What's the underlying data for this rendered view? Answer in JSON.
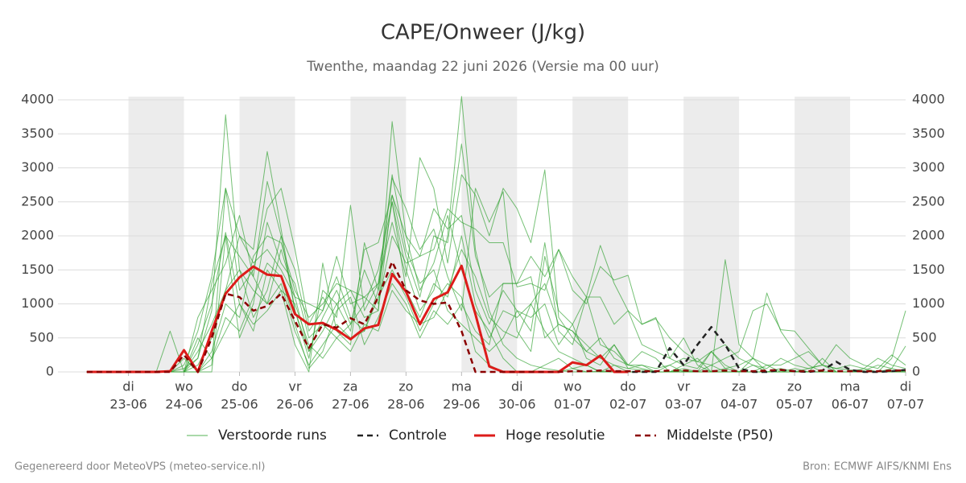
{
  "chart_data": {
    "type": "line",
    "title": "CAPE/Onweer (J/kg)",
    "subtitle": "Twenthe, maandag 22 juni 2026 (Versie ma 00 uur)",
    "x": [
      0.25,
      0.5,
      0.75,
      1,
      1.25,
      1.5,
      1.75,
      2,
      2.25,
      2.5,
      2.75,
      3,
      3.25,
      3.5,
      3.75,
      4,
      4.25,
      4.5,
      4.75,
      5,
      5.25,
      5.5,
      5.75,
      6,
      6.25,
      6.5,
      6.75,
      7,
      7.25,
      7.5,
      7.75,
      8,
      8.25,
      8.5,
      8.75,
      9,
      9.25,
      9.5,
      9.75,
      10,
      10.25,
      10.5,
      10.75,
      11,
      11.25,
      11.5,
      11.75,
      12,
      12.25,
      12.5,
      12.75,
      13,
      13.25,
      13.5,
      13.75,
      14,
      14.25,
      14.5,
      14.75,
      15
    ],
    "xlim": [
      -0.27,
      15
    ],
    "xticks": [
      {
        "value": 1,
        "label": "23-06"
      },
      {
        "value": 2,
        "label": "24-06"
      },
      {
        "value": 3,
        "label": "25-06"
      },
      {
        "value": 4,
        "label": "26-06"
      },
      {
        "value": 5,
        "label": "27-06"
      },
      {
        "value": 6,
        "label": "28-06"
      },
      {
        "value": 7,
        "label": "29-06"
      },
      {
        "value": 8,
        "label": "30-06"
      },
      {
        "value": 9,
        "label": "01-07"
      },
      {
        "value": 10,
        "label": "02-07"
      },
      {
        "value": 11,
        "label": "03-07"
      },
      {
        "value": 12,
        "label": "04-07"
      },
      {
        "value": 13,
        "label": "05-07"
      },
      {
        "value": 14,
        "label": "06-07"
      },
      {
        "value": 15,
        "label": "07-07"
      }
    ],
    "xtick_weekdays": [
      "di",
      "wo",
      "do",
      "vr",
      "za",
      "zo",
      "ma",
      "di",
      "wo",
      "do",
      "vr",
      "za",
      "zo",
      "ma",
      "di"
    ],
    "ylim": [
      0,
      4000
    ],
    "yticks": [
      0,
      500,
      1000,
      1500,
      2000,
      2500,
      3000,
      3500,
      4000
    ],
    "grid": true,
    "ensemble": {
      "name": "Verstoorde runs",
      "color": "#2ca02c",
      "members": [
        [
          0,
          0,
          0,
          0,
          0,
          0,
          0,
          50,
          200,
          900,
          3780,
          1500,
          800,
          1200,
          2000,
          1500,
          600,
          900,
          1400,
          800,
          600,
          1200,
          2500,
          1500,
          900,
          1200,
          2000,
          4050,
          1800,
          900,
          400,
          200,
          100,
          50,
          20,
          0,
          0,
          10,
          0,
          0,
          0,
          0,
          0,
          0,
          0,
          0,
          0,
          0,
          0,
          0,
          0,
          0,
          0,
          0,
          0,
          0,
          0,
          0,
          0,
          0
        ],
        [
          0,
          0,
          0,
          0,
          0,
          0,
          0,
          0,
          100,
          500,
          1200,
          2000,
          1800,
          3240,
          2100,
          900,
          300,
          600,
          1000,
          1200,
          800,
          900,
          3680,
          2000,
          1200,
          1600,
          2300,
          1500,
          900,
          600,
          200,
          0,
          0,
          0,
          0,
          50,
          100,
          0,
          0,
          0,
          0,
          0,
          0,
          20,
          0,
          0,
          0,
          0,
          0,
          0,
          0,
          0,
          0,
          0,
          0,
          0,
          0,
          0,
          0,
          0
        ],
        [
          0,
          0,
          0,
          0,
          0,
          0,
          0,
          100,
          600,
          1400,
          2700,
          1200,
          1500,
          2400,
          2700,
          1800,
          700,
          1100,
          800,
          2450,
          900,
          1300,
          2200,
          1400,
          3150,
          2700,
          1600,
          2900,
          2600,
          2000,
          2700,
          2400,
          1900,
          2970,
          800,
          500,
          300,
          200,
          100,
          50,
          30,
          0,
          0,
          0,
          0,
          0,
          0,
          0,
          0,
          0,
          0,
          0,
          0,
          0,
          0,
          0,
          0,
          0,
          0,
          0
        ],
        [
          0,
          0,
          0,
          0,
          0,
          0,
          600,
          0,
          400,
          1000,
          2050,
          1000,
          600,
          1500,
          1200,
          400,
          0,
          1600,
          600,
          400,
          1900,
          1200,
          2850,
          2400,
          1800,
          2100,
          1400,
          900,
          2700,
          2200,
          2650,
          600,
          300,
          1700,
          900,
          700,
          1100,
          1860,
          1300,
          900,
          700,
          800,
          200,
          500,
          100,
          0,
          1650,
          400,
          200,
          1160,
          600,
          300,
          100,
          0,
          0,
          0,
          0,
          0,
          200,
          900
        ],
        [
          0,
          0,
          0,
          0,
          0,
          0,
          0,
          0,
          800,
          1200,
          1600,
          2300,
          1400,
          2800,
          2000,
          900,
          200,
          1200,
          1000,
          600,
          1800,
          1900,
          2600,
          1700,
          1100,
          2000,
          1900,
          3350,
          1700,
          1100,
          1300,
          1300,
          1700,
          1400,
          1800,
          1200,
          1000,
          1550,
          1350,
          1420,
          700,
          780,
          500,
          300,
          150,
          100,
          200,
          300,
          900,
          1000,
          620,
          600,
          350,
          100,
          50,
          30,
          20,
          100,
          50,
          380
        ],
        [
          0,
          0,
          0,
          0,
          0,
          0,
          0,
          200,
          0,
          300,
          1000,
          800,
          1700,
          2000,
          1900,
          1200,
          800,
          1000,
          1300,
          1200,
          1100,
          900,
          2600,
          2000,
          1700,
          1800,
          2400,
          2200,
          2100,
          1900,
          1900,
          1250,
          1300,
          1200,
          1800,
          1400,
          1100,
          1100,
          700,
          900,
          400,
          300,
          200,
          100,
          50,
          300,
          400,
          200,
          100,
          50,
          200,
          100,
          50,
          100,
          400,
          200,
          100,
          50,
          250,
          100
        ],
        [
          0,
          0,
          0,
          0,
          0,
          0,
          0,
          0,
          0,
          200,
          600,
          1000,
          700,
          900,
          1200,
          1000,
          400,
          200,
          500,
          300,
          700,
          600,
          1200,
          900,
          700,
          800,
          1200,
          1800,
          1400,
          800,
          600,
          500,
          1000,
          1300,
          700,
          600,
          400,
          200,
          400,
          100,
          100,
          50,
          100,
          200,
          150,
          300,
          50,
          100,
          200,
          100,
          100,
          200,
          300,
          100,
          50,
          100,
          50,
          200,
          100,
          50
        ],
        [
          0,
          0,
          0,
          0,
          0,
          0,
          0,
          300,
          0,
          100,
          2700,
          2000,
          1600,
          1800,
          1500,
          1100,
          1000,
          900,
          1700,
          1000,
          1100,
          1300,
          2900,
          1800,
          1300,
          1500,
          900,
          700,
          500,
          300,
          500,
          900,
          600,
          1900,
          600,
          400,
          1100,
          400,
          300,
          100,
          50,
          0,
          100,
          0,
          0,
          300,
          100,
          0,
          0,
          100,
          0,
          0,
          50,
          100,
          0,
          0,
          0,
          0,
          50,
          0
        ],
        [
          0,
          0,
          0,
          0,
          0,
          0,
          0,
          0,
          300,
          700,
          1200,
          1500,
          1200,
          1000,
          1300,
          600,
          100,
          400,
          700,
          500,
          600,
          1100,
          1500,
          1100,
          600,
          1000,
          1300,
          1100,
          300,
          100,
          0,
          0,
          0,
          100,
          200,
          50,
          0,
          0,
          100,
          0,
          0,
          0,
          0,
          0,
          0,
          0,
          0,
          0,
          0,
          0,
          0,
          0,
          0,
          0,
          0,
          0,
          0,
          0,
          0,
          0
        ],
        [
          0,
          0,
          0,
          0,
          0,
          0,
          0,
          0,
          200,
          1300,
          2000,
          1700,
          1400,
          1000,
          1800,
          1100,
          300,
          800,
          1200,
          700,
          1500,
          1000,
          2000,
          1600,
          1700,
          2400,
          2100,
          2300,
          1200,
          700,
          1200,
          900,
          800,
          1000,
          400,
          700,
          200,
          100,
          400,
          50,
          100,
          0,
          0,
          50,
          0,
          100,
          0,
          0,
          200,
          0,
          0,
          50,
          0,
          0,
          0,
          0,
          0,
          0,
          0,
          0
        ],
        [
          0,
          0,
          0,
          0,
          0,
          0,
          0,
          0,
          500,
          200,
          800,
          600,
          1100,
          1600,
          1400,
          700,
          50,
          300,
          900,
          1100,
          400,
          800,
          1300,
          1000,
          500,
          900,
          700,
          1000,
          600,
          400,
          1300,
          1300,
          1400,
          500,
          700,
          600,
          300,
          500,
          200,
          100,
          300,
          200,
          0,
          100,
          200,
          0,
          50,
          0,
          100,
          0,
          50,
          0,
          0,
          200,
          0,
          0,
          50,
          0,
          0,
          0
        ],
        [
          0,
          0,
          0,
          0,
          0,
          0,
          0,
          0,
          0,
          0,
          2000,
          500,
          1000,
          2200,
          1600,
          1300,
          500,
          700,
          500,
          700,
          1000,
          1500,
          2500,
          1200,
          800,
          1300,
          1100,
          2000,
          1000,
          500,
          900,
          800,
          1000,
          600,
          300,
          200,
          100,
          0,
          0,
          0,
          0,
          0,
          0,
          0,
          0,
          0,
          0,
          0,
          0,
          0,
          0,
          0,
          0,
          0,
          0,
          0,
          0,
          0,
          0,
          0
        ]
      ]
    },
    "series": [
      {
        "name": "Controle",
        "color": "#222222",
        "dashed": true,
        "values": [
          0,
          0,
          0,
          0,
          0,
          0,
          10,
          320,
          0,
          600,
          1150,
          1390,
          1550,
          1430,
          1410,
          850,
          700,
          720,
          620,
          480,
          640,
          690,
          1440,
          1180,
          700,
          1070,
          1170,
          1560,
          850,
          80,
          0,
          0,
          0,
          0,
          0,
          140,
          100,
          240,
          0,
          0,
          0,
          0,
          350,
          100,
          400,
          660,
          400,
          50,
          0,
          0,
          30,
          10,
          0,
          20,
          150,
          30,
          0,
          0,
          10,
          30
        ]
      },
      {
        "name": "Hoge resolutie",
        "color": "#dd1c1a",
        "dashed": false,
        "values": [
          0,
          0,
          0,
          0,
          0,
          0,
          10,
          320,
          0,
          600,
          1150,
          1390,
          1550,
          1430,
          1410,
          850,
          700,
          720,
          620,
          480,
          640,
          690,
          1440,
          1180,
          700,
          1070,
          1170,
          1560,
          850,
          80,
          0,
          0,
          0,
          0,
          0,
          140,
          100,
          240,
          0,
          0,
          null,
          null,
          null,
          null,
          null,
          null,
          null,
          null,
          null,
          null,
          null,
          null,
          null,
          null,
          null,
          null,
          null,
          null,
          null,
          null
        ]
      },
      {
        "name": "Middelste (P50)",
        "color": "#8b0000",
        "dashed": true,
        "values": [
          0,
          0,
          0,
          0,
          0,
          0,
          0,
          250,
          0,
          500,
          1150,
          1100,
          900,
          970,
          1150,
          750,
          350,
          700,
          650,
          790,
          700,
          1100,
          1620,
          1200,
          1050,
          1000,
          1020,
          600,
          0,
          0,
          0,
          0,
          0,
          0,
          0,
          10,
          10,
          20,
          10,
          10,
          10,
          10,
          20,
          20,
          10,
          10,
          20,
          10,
          10,
          20,
          30,
          10,
          10,
          20,
          10,
          10,
          10,
          10,
          20,
          20
        ]
      }
    ],
    "footer_left": "Gegenereerd door MeteoVPS (meteo-service.nl)",
    "footer_right": "Bron: ECMWF AIFS/KNMI Ens"
  }
}
